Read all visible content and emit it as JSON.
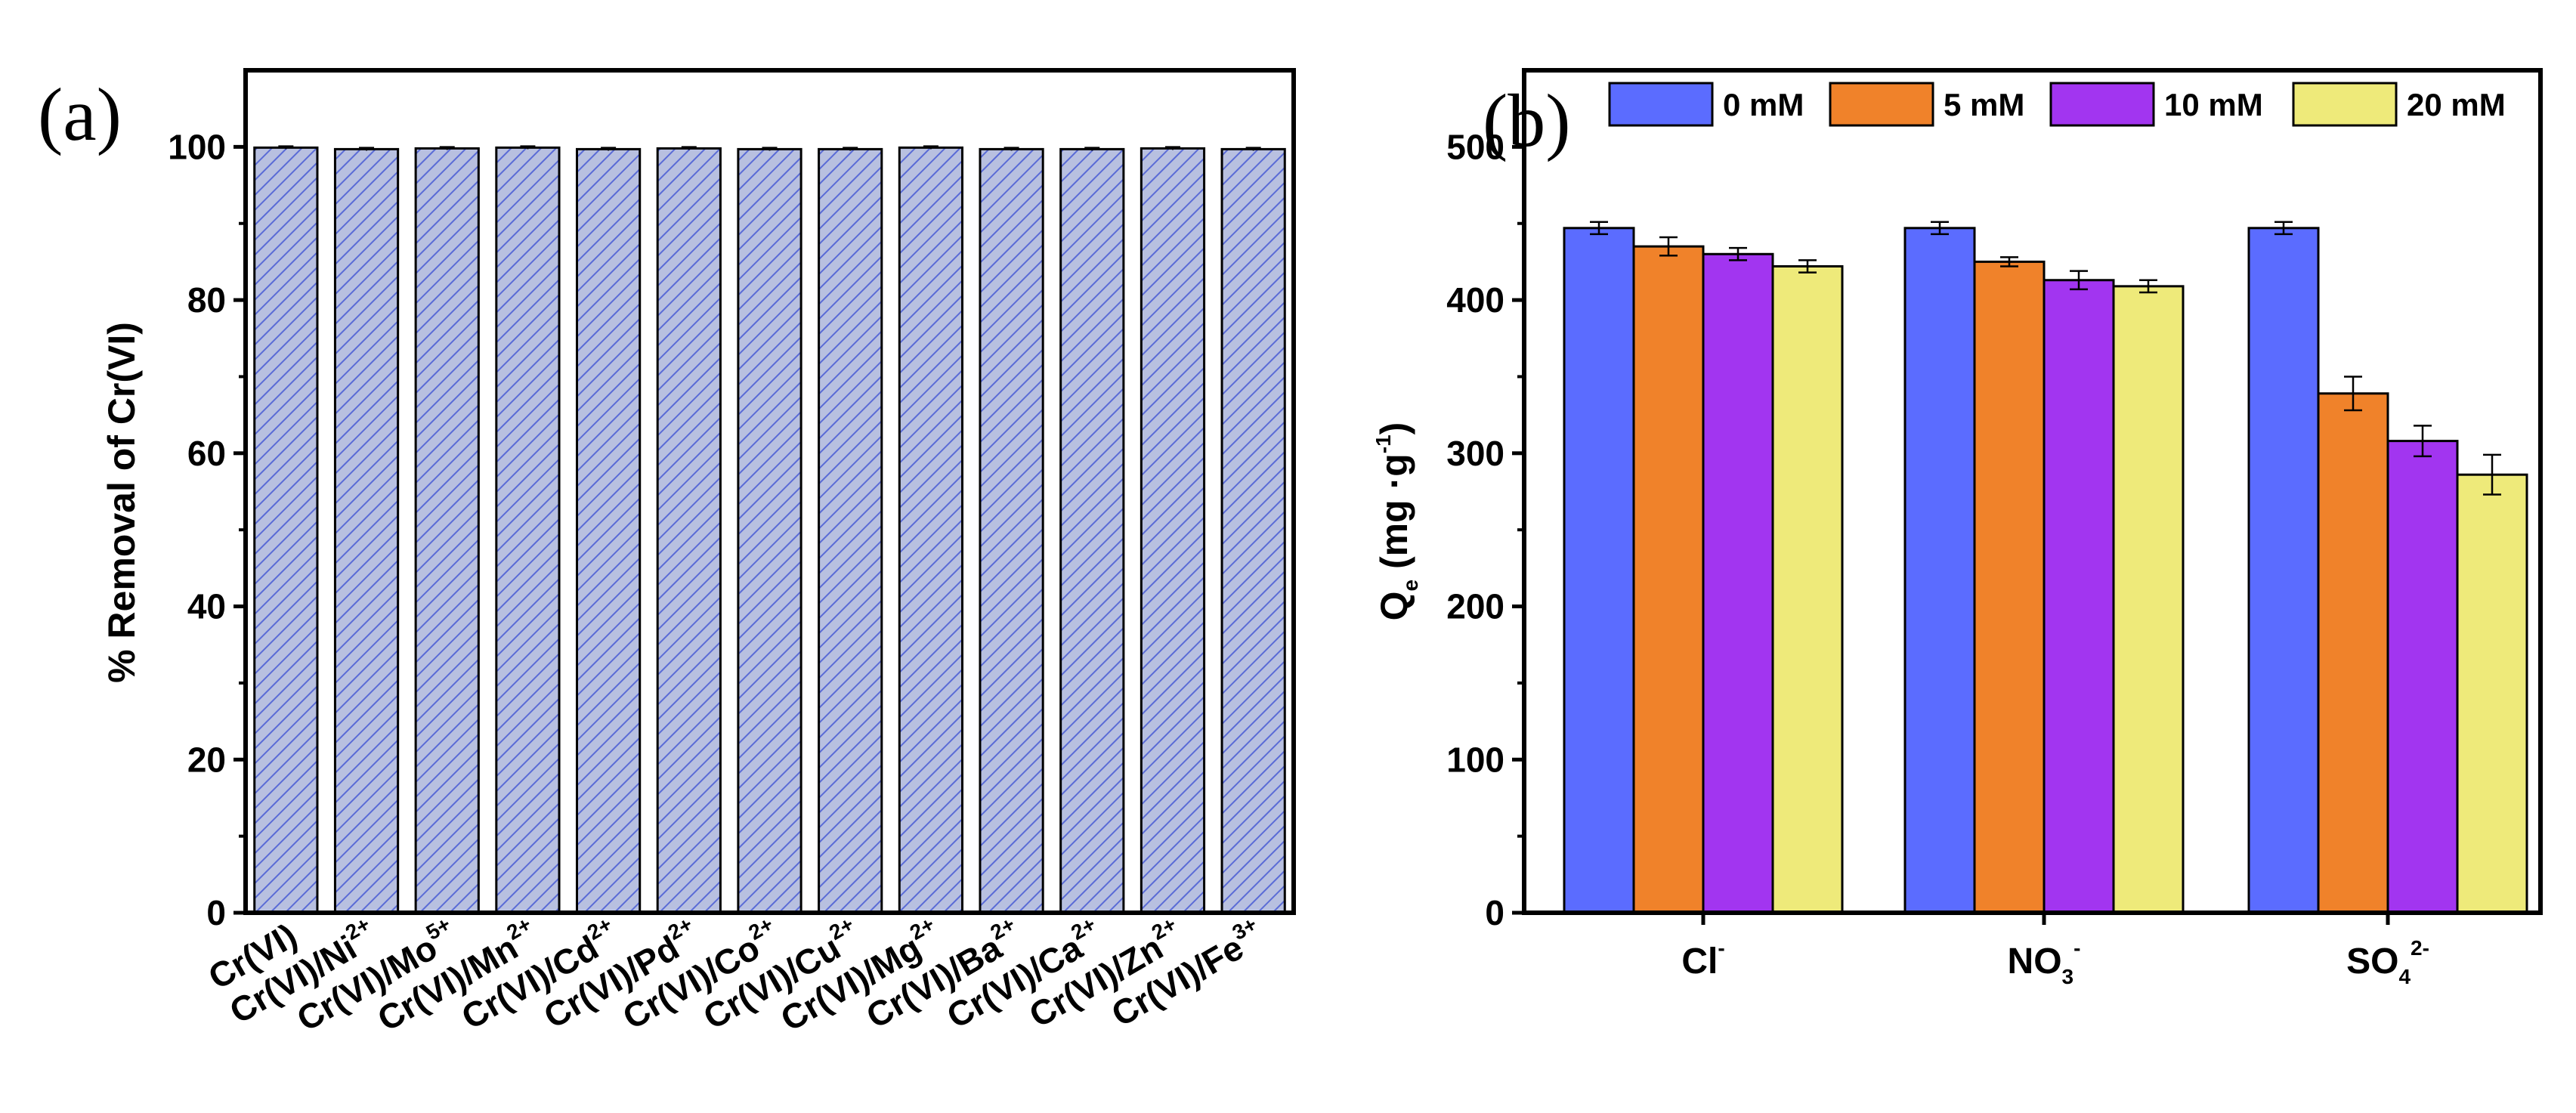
{
  "chart_data": [
    {
      "panel_label": "(a)",
      "type": "bar",
      "title": "",
      "xlabel": "",
      "ylabel": "% Removal of Cr(VI)",
      "ylim": [
        0,
        110
      ],
      "yticks": [
        0,
        20,
        40,
        60,
        80,
        100
      ],
      "ytick_labels": [
        "0",
        "20",
        "40",
        "60",
        "80",
        "100"
      ],
      "categories": [
        {
          "base": "Cr(VI)",
          "sup": ""
        },
        {
          "base": "Cr(VI)/Ni",
          "sup": "2+"
        },
        {
          "base": "Cr(VI)/Mo",
          "sup": "5+"
        },
        {
          "base": "Cr(VI)/Mn",
          "sup": "2+"
        },
        {
          "base": "Cr(VI)/Cd",
          "sup": "2+"
        },
        {
          "base": "Cr(VI)/Pd",
          "sup": "2+"
        },
        {
          "base": "Cr(VI)/Co",
          "sup": "2+"
        },
        {
          "base": "Cr(VI)/Cu",
          "sup": "2+"
        },
        {
          "base": "Cr(VI)/Mg",
          "sup": "2+"
        },
        {
          "base": "Cr(VI)/Ba",
          "sup": "2+"
        },
        {
          "base": "Cr(VI)/Ca",
          "sup": "2+"
        },
        {
          "base": "Cr(VI)/Zn",
          "sup": "2+"
        },
        {
          "base": "Cr(VI)/Fe",
          "sup": "3+"
        }
      ],
      "values": [
        99.9,
        99.7,
        99.8,
        99.9,
        99.7,
        99.8,
        99.7,
        99.7,
        99.9,
        99.7,
        99.7,
        99.8,
        99.7
      ],
      "errors": [
        0.2,
        0.2,
        0.2,
        0.2,
        0.2,
        0.2,
        0.2,
        0.2,
        0.2,
        0.2,
        0.2,
        0.2,
        0.2
      ],
      "bar_fill": "#b8c0e0",
      "hatch_color": "#5a6bd6",
      "grid": false
    },
    {
      "panel_label": "(b)",
      "type": "bar",
      "title": "",
      "xlabel": "",
      "ylabel": {
        "base": "Q",
        "sub": "e",
        "rest": " (mg ·g",
        "sup": "-1",
        "end": ")"
      },
      "ylim": [
        0,
        550
      ],
      "yticks": [
        0,
        100,
        200,
        300,
        400,
        500
      ],
      "ytick_labels": [
        "0",
        "100",
        "200",
        "300",
        "400",
        "500"
      ],
      "categories": [
        {
          "base": "Cl",
          "sub": "",
          "sup": "-"
        },
        {
          "base": "NO",
          "sub": "3",
          "sup": "-"
        },
        {
          "base": "SO",
          "sub": "4",
          "sup": "2-"
        }
      ],
      "series": [
        {
          "name": "0 mM",
          "color": "#5b6cff",
          "values": [
            447,
            447,
            447
          ],
          "errors": [
            4,
            4,
            4
          ]
        },
        {
          "name": "5 mM",
          "color": "#f0822a",
          "values": [
            435,
            425,
            339
          ],
          "errors": [
            6,
            3,
            11
          ]
        },
        {
          "name": "10 mM",
          "color": "#a235f0",
          "values": [
            430,
            413,
            308
          ],
          "errors": [
            4,
            6,
            10
          ]
        },
        {
          "name": "20 mM",
          "color": "#eeea7a",
          "values": [
            422,
            409,
            286
          ],
          "errors": [
            4,
            4,
            13
          ]
        }
      ],
      "legend": "top-right",
      "grid": false
    }
  ]
}
